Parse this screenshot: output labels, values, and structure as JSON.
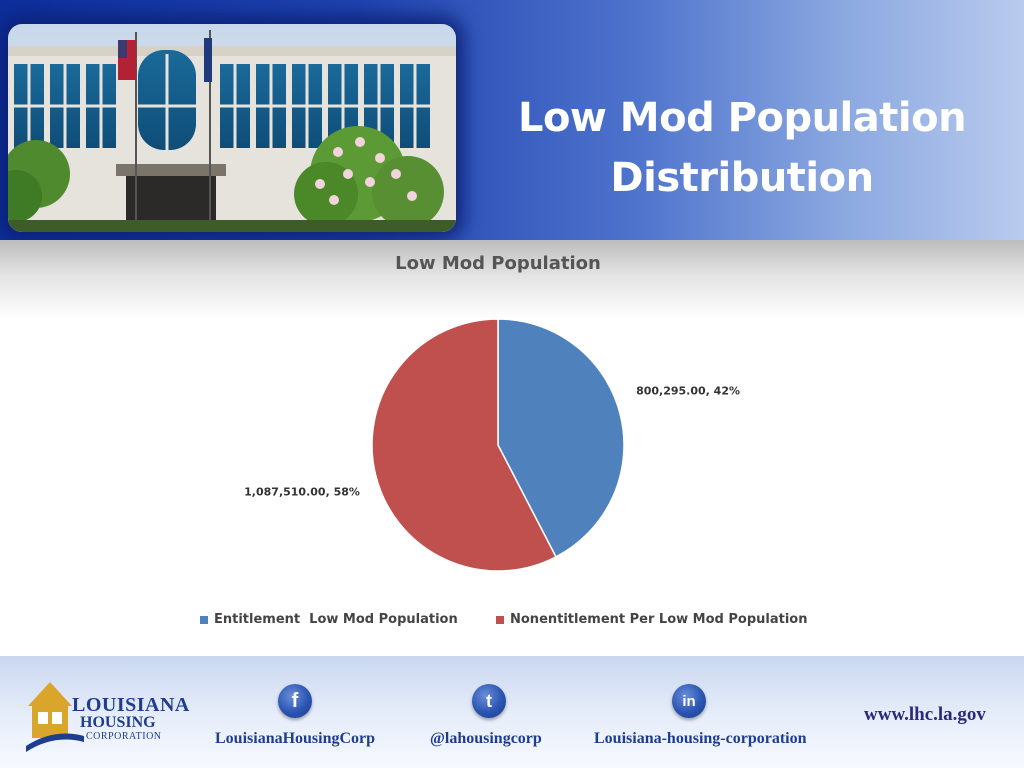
{
  "slide": {
    "title_line1": "Low Mod Population",
    "title_line2": "Distribution"
  },
  "chart_data": {
    "type": "pie",
    "title": "Low Mod Population",
    "categories": [
      "Entitlement  Low Mod Population",
      "Nonentitlement Per Low Mod Population"
    ],
    "values": [
      800295,
      1087510
    ],
    "percent": [
      42,
      58
    ],
    "data_labels": [
      "800,295.00, 42%",
      "1,087,510.00, 58%"
    ],
    "colors": [
      "#4f81bd",
      "#c0504d"
    ],
    "legend_position": "bottom"
  },
  "footer": {
    "logo": {
      "word1": "LOUISIANA",
      "word2": "HOUSING",
      "word3": "CORPORATION"
    },
    "facebook": {
      "icon": "facebook-icon",
      "glyph": "f",
      "label": "LouisianaHousingCorp"
    },
    "twitter": {
      "icon": "twitter-icon",
      "glyph": "t",
      "label": "@lahousingcorp"
    },
    "linkedin": {
      "icon": "linkedin-icon",
      "glyph": "in",
      "label": "Louisiana-housing-corporation"
    },
    "website": "www.lhc.la.gov"
  }
}
